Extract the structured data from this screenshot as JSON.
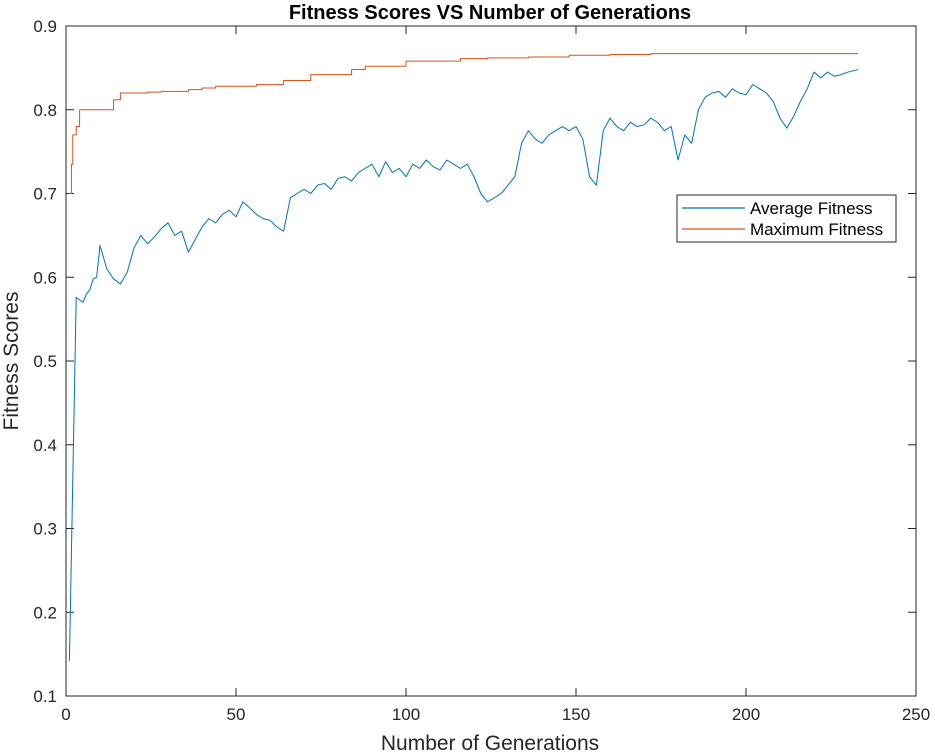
{
  "chart_data": {
    "type": "line",
    "title": "Fitness Scores VS Number of Generations",
    "xlabel": "Number of Generations",
    "ylabel": "Fitness Scores",
    "xlim": [
      0,
      250
    ],
    "ylim": [
      0.1,
      0.9
    ],
    "xticks": [
      0,
      50,
      100,
      150,
      200,
      250
    ],
    "yticks": [
      0.1,
      0.2,
      0.3,
      0.4,
      0.5,
      0.6,
      0.7,
      0.8,
      0.9
    ],
    "xtick_labels": [
      "0",
      "50",
      "100",
      "150",
      "200",
      "250"
    ],
    "ytick_labels": [
      "0.1",
      "0.2",
      "0.3",
      "0.4",
      "0.5",
      "0.6",
      "0.7",
      "0.8",
      "0.9"
    ],
    "grid": false,
    "legend_position": "top-right (inside, middle-right)",
    "series": [
      {
        "name": "Average Fitness",
        "color": "#0072BD",
        "x": [
          1,
          2,
          3,
          4,
          5,
          6,
          7,
          8,
          9,
          10,
          12,
          14,
          16,
          18,
          20,
          22,
          24,
          26,
          28,
          30,
          32,
          34,
          36,
          38,
          40,
          42,
          44,
          46,
          48,
          50,
          52,
          54,
          56,
          58,
          60,
          62,
          64,
          66,
          68,
          70,
          72,
          74,
          76,
          78,
          80,
          82,
          84,
          86,
          88,
          90,
          92,
          94,
          96,
          98,
          100,
          102,
          104,
          106,
          108,
          110,
          112,
          114,
          116,
          118,
          120,
          122,
          124,
          126,
          128,
          130,
          132,
          134,
          136,
          138,
          140,
          142,
          144,
          146,
          148,
          150,
          152,
          154,
          156,
          158,
          160,
          162,
          164,
          166,
          168,
          170,
          172,
          174,
          176,
          178,
          180,
          182,
          184,
          186,
          188,
          190,
          192,
          194,
          196,
          198,
          200,
          202,
          204,
          206,
          208,
          210,
          212,
          214,
          216,
          218,
          220,
          222,
          224,
          226,
          228,
          230,
          233
        ],
        "values": [
          0.142,
          0.36,
          0.576,
          0.573,
          0.57,
          0.58,
          0.585,
          0.598,
          0.6,
          0.638,
          0.61,
          0.598,
          0.592,
          0.606,
          0.635,
          0.65,
          0.64,
          0.648,
          0.658,
          0.665,
          0.65,
          0.655,
          0.63,
          0.645,
          0.66,
          0.67,
          0.665,
          0.675,
          0.68,
          0.672,
          0.69,
          0.683,
          0.675,
          0.67,
          0.668,
          0.66,
          0.655,
          0.695,
          0.7,
          0.705,
          0.7,
          0.71,
          0.712,
          0.705,
          0.718,
          0.72,
          0.715,
          0.725,
          0.73,
          0.735,
          0.72,
          0.738,
          0.725,
          0.73,
          0.72,
          0.735,
          0.73,
          0.74,
          0.732,
          0.728,
          0.74,
          0.735,
          0.73,
          0.735,
          0.72,
          0.7,
          0.69,
          0.695,
          0.7,
          0.71,
          0.72,
          0.76,
          0.775,
          0.765,
          0.76,
          0.77,
          0.775,
          0.78,
          0.775,
          0.78,
          0.765,
          0.72,
          0.71,
          0.775,
          0.79,
          0.78,
          0.775,
          0.785,
          0.78,
          0.782,
          0.79,
          0.785,
          0.775,
          0.78,
          0.74,
          0.77,
          0.76,
          0.8,
          0.815,
          0.82,
          0.822,
          0.815,
          0.825,
          0.82,
          0.818,
          0.83,
          0.825,
          0.82,
          0.81,
          0.79,
          0.778,
          0.792,
          0.81,
          0.825,
          0.845,
          0.838,
          0.845,
          0.84,
          0.842,
          0.845,
          0.848
        ]
      },
      {
        "name": "Maximum Fitness",
        "color": "#D95319",
        "x": [
          1,
          1.6,
          1.6,
          2,
          2,
          3,
          3,
          4,
          4,
          14,
          14,
          16,
          16,
          24,
          24,
          28,
          28,
          36,
          36,
          40,
          40,
          44,
          44,
          56,
          56,
          64,
          64,
          72,
          72,
          84,
          84,
          88,
          88,
          100,
          100,
          116,
          116,
          124,
          124,
          136,
          136,
          148,
          148,
          160,
          160,
          172,
          172,
          200,
          200,
          233
        ],
        "values": [
          0.7,
          0.7,
          0.735,
          0.735,
          0.77,
          0.77,
          0.78,
          0.78,
          0.8,
          0.8,
          0.812,
          0.812,
          0.82,
          0.82,
          0.821,
          0.821,
          0.822,
          0.822,
          0.824,
          0.824,
          0.826,
          0.826,
          0.828,
          0.828,
          0.83,
          0.83,
          0.835,
          0.835,
          0.842,
          0.842,
          0.848,
          0.848,
          0.852,
          0.852,
          0.858,
          0.858,
          0.861,
          0.861,
          0.862,
          0.862,
          0.863,
          0.863,
          0.865,
          0.865,
          0.866,
          0.866,
          0.867,
          0.867,
          0.867,
          0.867
        ]
      }
    ]
  }
}
